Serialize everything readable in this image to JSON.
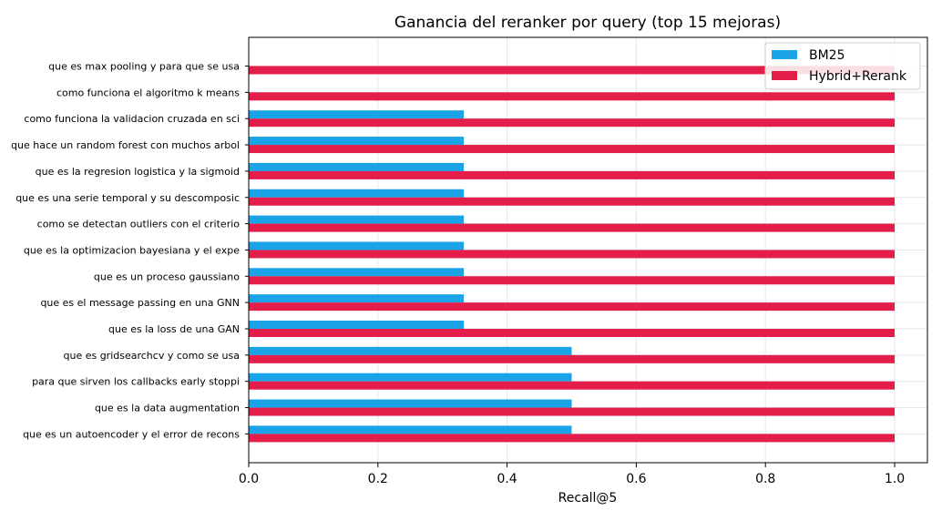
{
  "chart_data": {
    "type": "bar",
    "orientation": "horizontal",
    "title": "Ganancia del reranker por query (top 15 mejoras)",
    "xlabel": "Recall@5",
    "ylabel": "",
    "xlim": [
      0,
      1.05
    ],
    "xticks": [
      "0.0",
      "0.2",
      "0.4",
      "0.6",
      "0.8",
      "1.0"
    ],
    "grid": true,
    "legend_position": "top-right",
    "categories": [
      "que es max pooling y para que se usa",
      "como funciona el algoritmo k means",
      "como funciona la validacion cruzada en sci",
      "que hace un random forest con muchos arbol",
      "que es la regresion logistica y la sigmoid",
      "que es una serie temporal y su descomposic",
      "como se detectan outliers con el criterio ",
      "que es la optimizacion bayesiana y el expe",
      "que es un proceso gaussiano",
      "que es el message passing en una GNN",
      "que es la loss de una GAN",
      "que es gridsearchcv y como se usa",
      "para que sirven los callbacks early stoppi",
      "que es la data augmentation",
      "que es un autoencoder y el error de recons"
    ],
    "series": [
      {
        "name": "BM25",
        "color": "#1ba3e8",
        "values": [
          0,
          0,
          0.333,
          0.333,
          0.333,
          0.333,
          0.333,
          0.333,
          0.333,
          0.333,
          0.333,
          0.5,
          0.5,
          0.5,
          0.5
        ]
      },
      {
        "name": "Hybrid+Rerank",
        "color": "#e31e4a",
        "values": [
          1,
          1,
          1,
          1,
          1,
          1,
          1,
          1,
          1,
          1,
          1,
          1,
          1,
          1,
          1
        ]
      }
    ]
  }
}
